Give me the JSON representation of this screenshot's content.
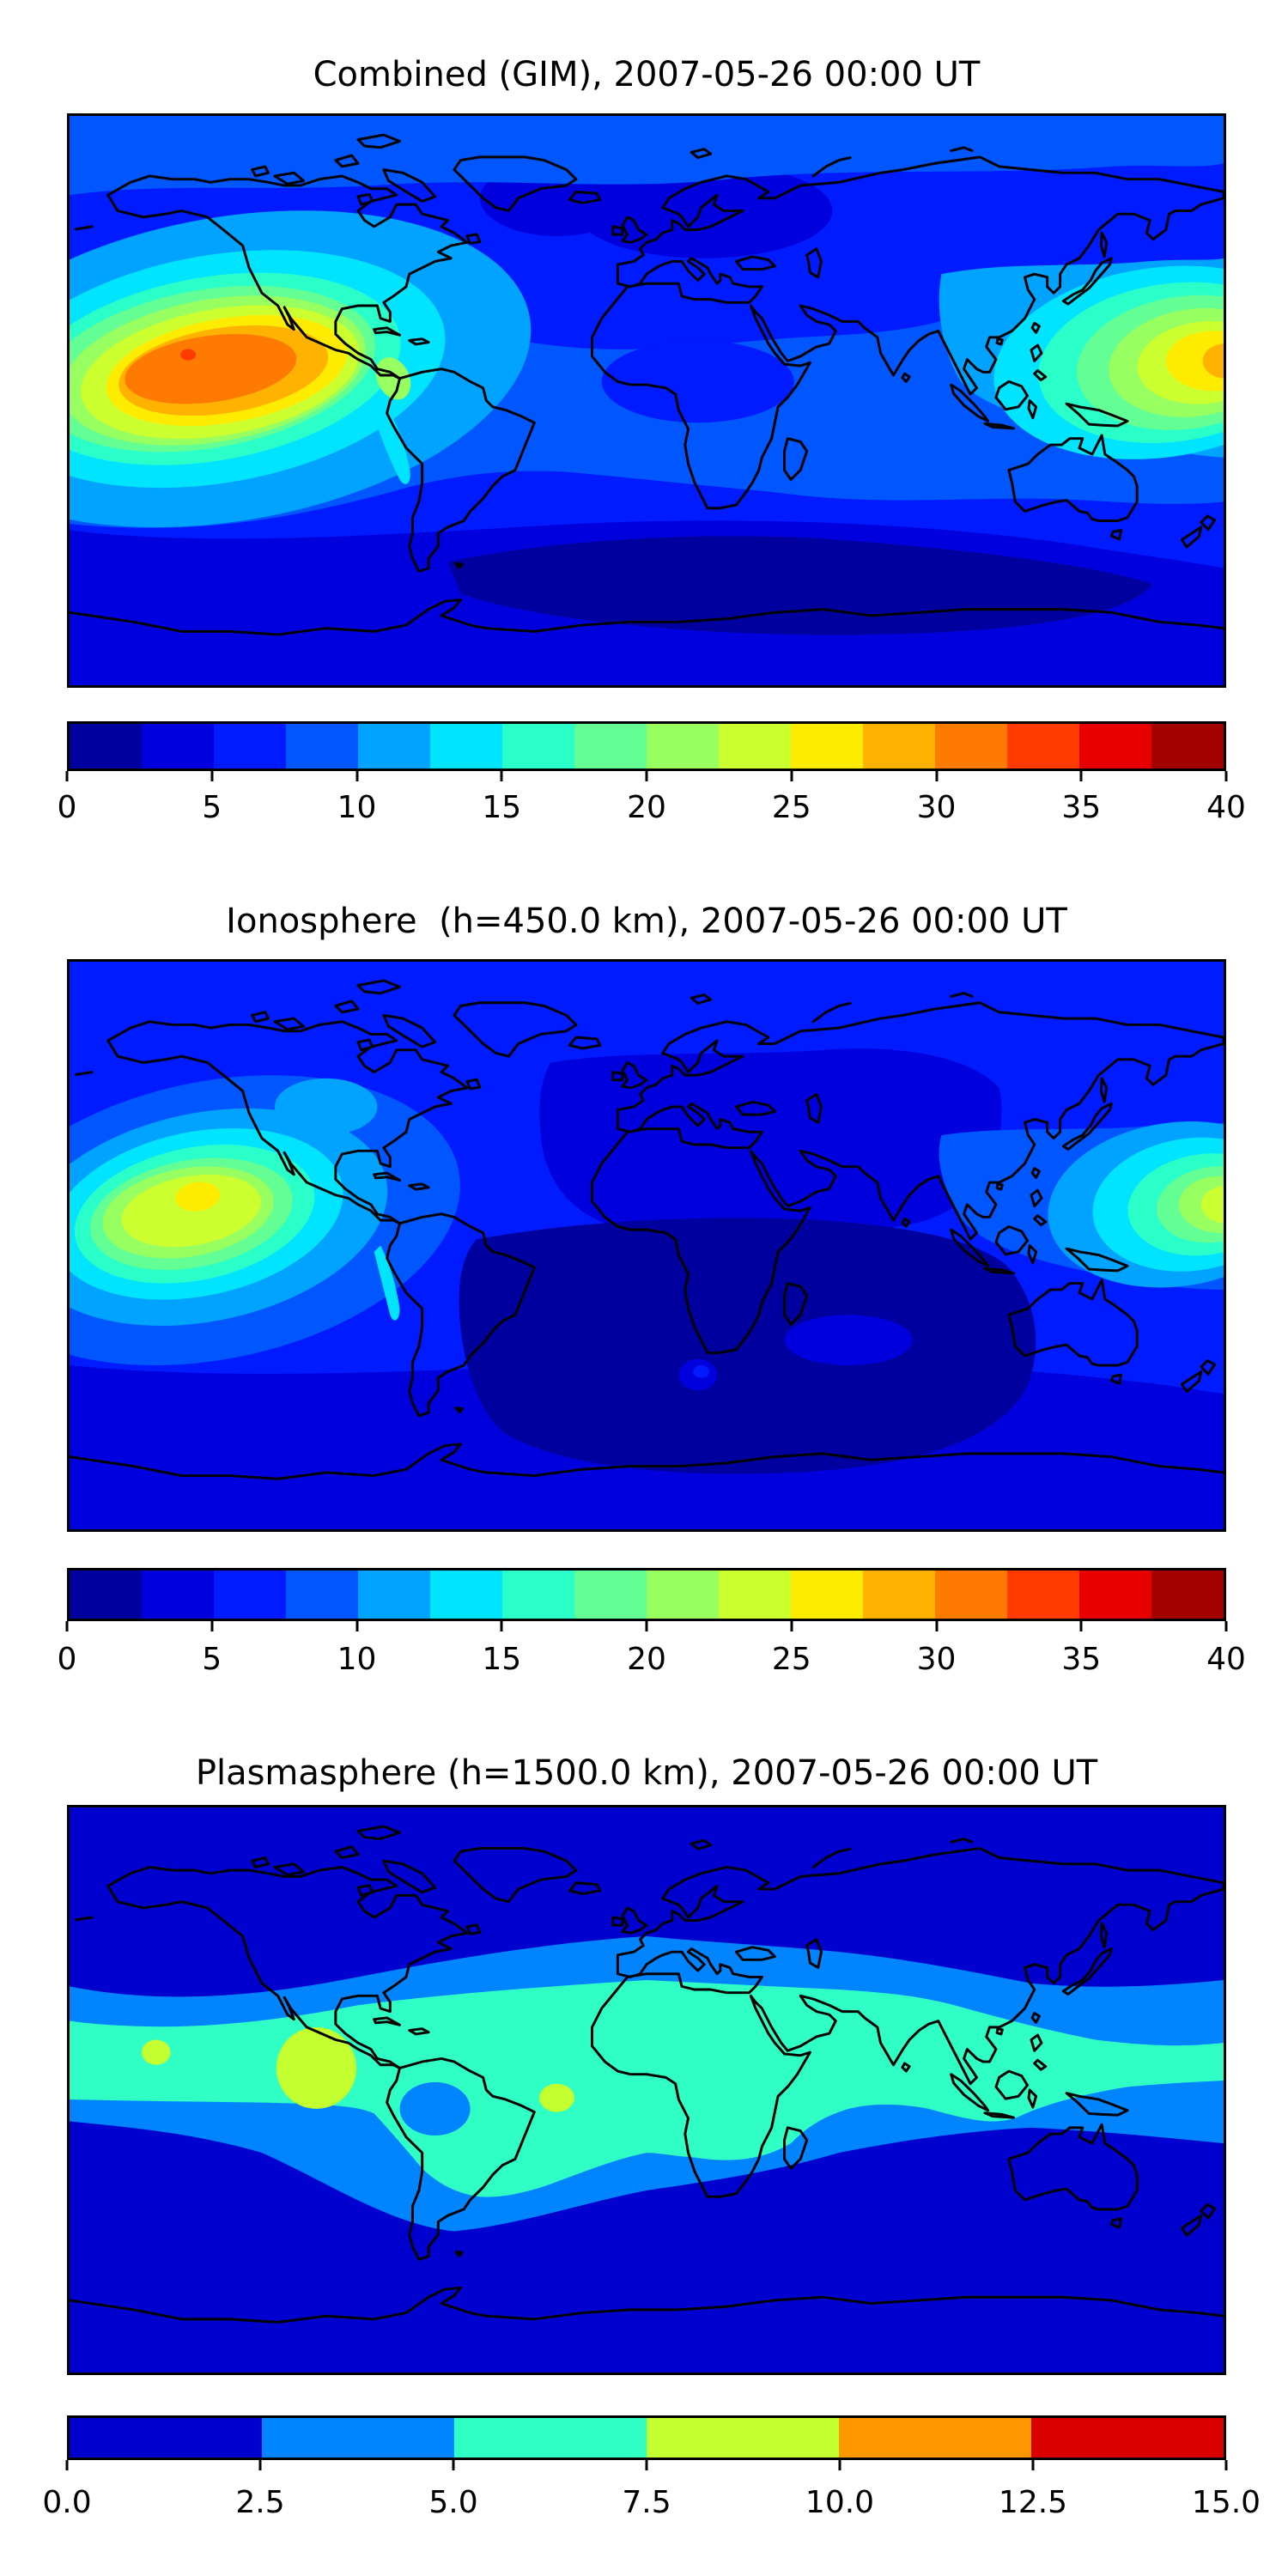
{
  "figure": {
    "background": "#ffffff"
  },
  "panels": [
    {
      "id": "combined",
      "title": "Combined (GIM), 2007-05-26 00:00 UT",
      "colorbar": {
        "vmin": 0,
        "vmax": 40,
        "ticks": [
          "0",
          "5",
          "10",
          "15",
          "20",
          "25",
          "30",
          "35",
          "40"
        ],
        "colors": [
          "#00009E",
          "#0000DE",
          "#001BFF",
          "#0057FF",
          "#00A3FF",
          "#00E4FF",
          "#2BFFC9",
          "#63FF94",
          "#97FF60",
          "#CCFF2F",
          "#FEEC00",
          "#FFB300",
          "#FF7A00",
          "#FF3B00",
          "#E80000",
          "#A30000"
        ]
      }
    },
    {
      "id": "ionosphere",
      "title": "Ionosphere  (h=450.0 km), 2007-05-26 00:00 UT",
      "colorbar": {
        "vmin": 0,
        "vmax": 40,
        "ticks": [
          "0",
          "5",
          "10",
          "15",
          "20",
          "25",
          "30",
          "35",
          "40"
        ],
        "colors": [
          "#00009E",
          "#0000DE",
          "#001BFF",
          "#0057FF",
          "#00A3FF",
          "#00E4FF",
          "#2BFFC9",
          "#63FF94",
          "#97FF60",
          "#CCFF2F",
          "#FEEC00",
          "#FFB300",
          "#FF7A00",
          "#FF3B00",
          "#E80000",
          "#A30000"
        ]
      }
    },
    {
      "id": "plasmasphere",
      "title": "Plasmasphere (h=1500.0 km), 2007-05-26 00:00 UT",
      "colorbar": {
        "vmin": 0,
        "vmax": 15,
        "ticks": [
          "0.0",
          "2.5",
          "5.0",
          "7.5",
          "10.0",
          "12.5",
          "15.0"
        ],
        "colors": [
          "#0000CF",
          "#0084FF",
          "#2FFFC4",
          "#C3FF30",
          "#FF9800",
          "#DB0000"
        ]
      }
    }
  ],
  "chart_data": [
    {
      "type": "filled-contour-map",
      "title": "Combined (GIM), 2007-05-26 00:00 UT",
      "projection": "equirectangular",
      "lon_range": [
        -180,
        180
      ],
      "lat_range": [
        -90,
        90
      ],
      "colormap": "jet",
      "contour_levels": [
        0,
        2.5,
        5,
        7.5,
        10,
        12.5,
        15,
        17.5,
        20,
        22.5,
        25,
        27.5,
        30,
        32.5,
        35,
        37.5,
        40
      ],
      "legend_position": "bottom-colorbar",
      "features": [
        {
          "name": "equatorial-anomaly-maximum-east-pacific",
          "lon": -143,
          "lat": 13,
          "value_range": [
            35,
            37.5
          ]
        },
        {
          "name": "broad-daytime-enhancement-east-pacific",
          "lon_range": [
            -180,
            -80
          ],
          "lat_range": [
            -16,
            30
          ],
          "value_range": [
            25,
            35
          ]
        },
        {
          "name": "secondary-maximum-west-pacific",
          "lon": 178,
          "lat": 13,
          "value_range": [
            30,
            32.5
          ]
        },
        {
          "name": "southern-high-latitude-minimum",
          "lon_range": [
            -60,
            160
          ],
          "lat_range": [
            -75,
            -50
          ],
          "value_range": [
            0,
            2.5
          ]
        },
        {
          "name": "european-nightside-low",
          "lon_range": [
            -10,
            60
          ],
          "lat_range": [
            45,
            75
          ],
          "value_range": [
            2.5,
            5
          ]
        },
        {
          "name": "arctic-band",
          "lat_range": [
            67,
            90
          ],
          "value_range": [
            7.5,
            10
          ]
        }
      ]
    },
    {
      "type": "filled-contour-map",
      "title": "Ionosphere  (h=450.0 km), 2007-05-26 00:00 UT",
      "projection": "equirectangular",
      "lon_range": [
        -180,
        180
      ],
      "lat_range": [
        -90,
        90
      ],
      "colormap": "jet",
      "contour_levels": [
        0,
        2.5,
        5,
        7.5,
        10,
        12.5,
        15,
        17.5,
        20,
        22.5,
        25,
        27.5,
        30,
        32.5,
        35,
        37.5,
        40
      ],
      "legend_position": "bottom-colorbar",
      "features": [
        {
          "name": "maximum-east-pacific",
          "lon": -141,
          "lat": 15,
          "value_range": [
            25,
            27.5
          ]
        },
        {
          "name": "secondary-maximum-west-pacific",
          "lon": 178,
          "lat": 14,
          "value_range": [
            22.5,
            25
          ]
        },
        {
          "name": "nightside-minimum-africa-indian-ocean",
          "lon_range": [
            -55,
            135
          ],
          "lat_range": [
            -70,
            2
          ],
          "value_range": [
            0,
            2.5
          ]
        },
        {
          "name": "southern-high-latitude-low-band",
          "lat_range": [
            -90,
            -40
          ],
          "value_range": [
            2.5,
            5
          ]
        }
      ]
    },
    {
      "type": "filled-contour-map",
      "title": "Plasmasphere (h=1500.0 km), 2007-05-26 00:00 UT",
      "projection": "equirectangular",
      "lon_range": [
        -180,
        180
      ],
      "lat_range": [
        -90,
        90
      ],
      "colormap": "jet",
      "contour_levels": [
        0,
        2.5,
        5,
        7.5,
        10,
        12.5,
        15
      ],
      "legend_position": "bottom-colorbar",
      "features": [
        {
          "name": "plasmaspheric-equatorial-band",
          "lat_range": [
            -25,
            35
          ],
          "value_range": [
            5,
            7.5
          ]
        },
        {
          "name": "midlatitude-transition-band",
          "lat_range": [
            -45,
            50
          ],
          "value_range": [
            2.5,
            5
          ]
        },
        {
          "name": "enhancement-east-pacific",
          "lon": -103,
          "lat": 7,
          "value_range": [
            7.5,
            10
          ]
        },
        {
          "name": "small-enhancement-central-pacific",
          "lon": -153,
          "lat": 12,
          "value_range": [
            7.5,
            10
          ]
        },
        {
          "name": "small-enhancement-atlantic",
          "lon": -28,
          "lat": -2.5,
          "value_range": [
            7.5,
            10
          ]
        },
        {
          "name": "depletion-over-brazil",
          "lon": -66,
          "lat": -6,
          "value_range": [
            2.5,
            5
          ]
        },
        {
          "name": "polar-background",
          "value_range": [
            0,
            2.5
          ]
        }
      ]
    }
  ]
}
